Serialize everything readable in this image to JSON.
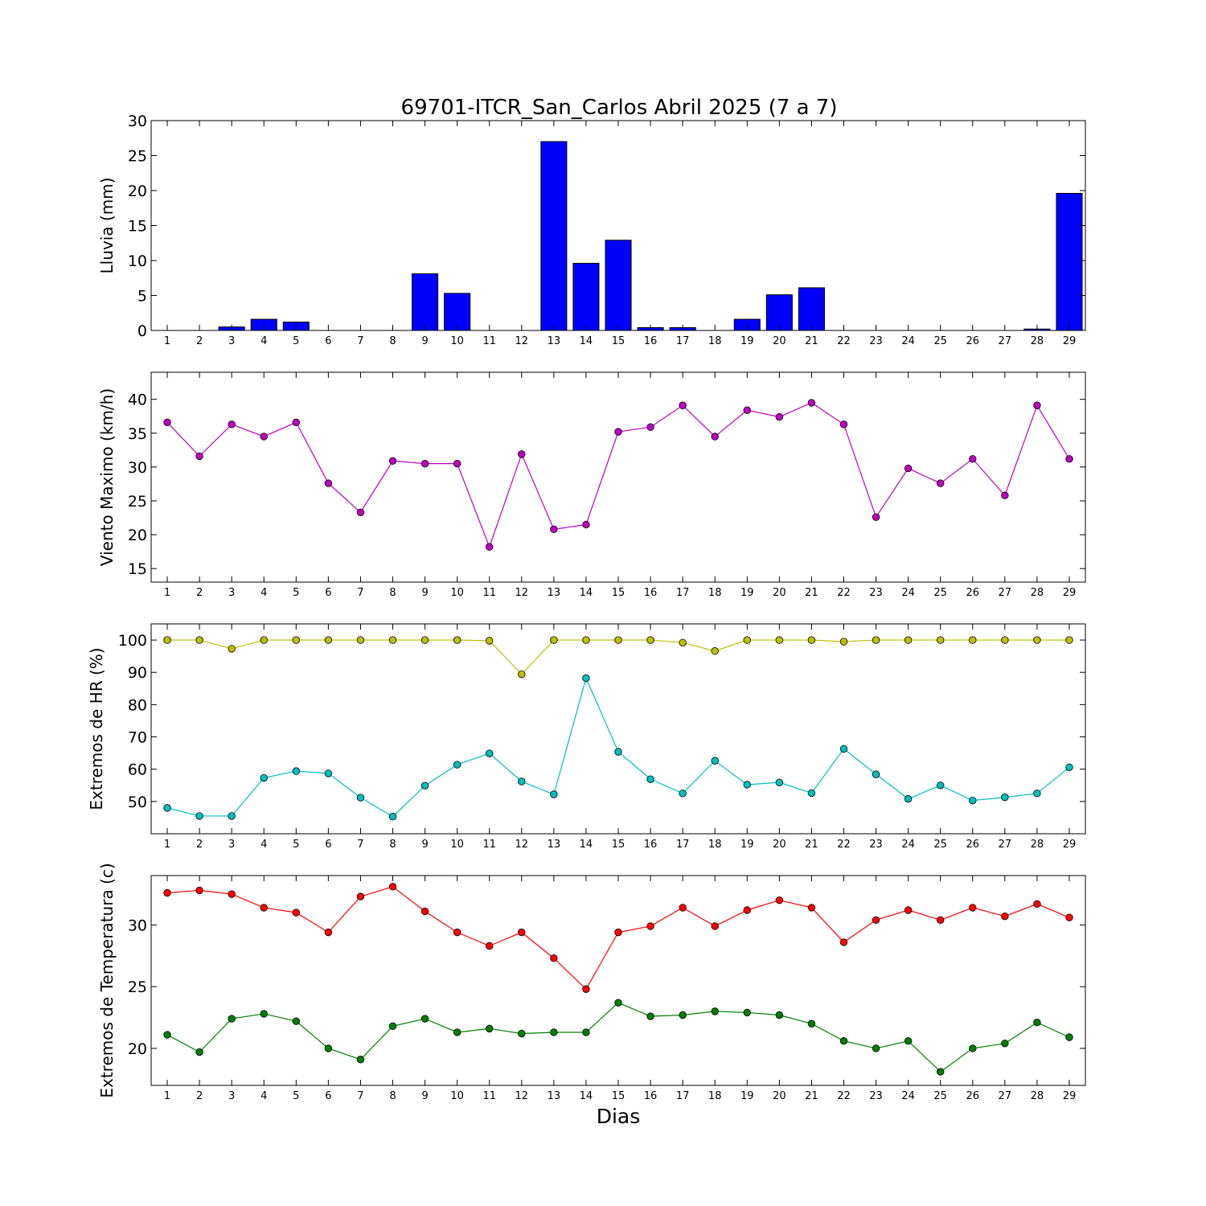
{
  "chart_data": [
    {
      "type": "bar",
      "title": "69701-ITCR_San_Carlos Abril 2025  (7 a 7)",
      "ylabel": "Lluvia (mm)",
      "xlabel": "",
      "ylim": [
        0,
        30
      ],
      "yticks": [
        0,
        5,
        10,
        15,
        20,
        25,
        30
      ],
      "xlim": [
        0.5,
        29.5
      ],
      "grid": false,
      "categories": [
        1,
        2,
        3,
        4,
        5,
        6,
        7,
        8,
        9,
        10,
        11,
        12,
        13,
        14,
        15,
        16,
        17,
        18,
        19,
        20,
        21,
        22,
        23,
        24,
        25,
        26,
        27,
        28,
        29
      ],
      "values": [
        0,
        0,
        0.5,
        1.6,
        1.2,
        0,
        0,
        0,
        8.1,
        5.3,
        0,
        0,
        27.0,
        9.6,
        12.9,
        0.4,
        0.4,
        0,
        1.6,
        5.1,
        6.1,
        0,
        0,
        0,
        0,
        0,
        0,
        0.2,
        19.6
      ],
      "colors": {
        "bar": "#0000ff"
      }
    },
    {
      "type": "line",
      "ylabel": "Viento Maximo (km/h)",
      "xlabel": "",
      "ylim": [
        13,
        44
      ],
      "yticks": [
        15,
        20,
        25,
        30,
        35,
        40
      ],
      "xlim": [
        0.5,
        29.5
      ],
      "grid": false,
      "x": [
        1,
        2,
        3,
        4,
        5,
        6,
        7,
        8,
        9,
        10,
        11,
        12,
        13,
        14,
        15,
        16,
        17,
        18,
        19,
        20,
        21,
        22,
        23,
        24,
        25,
        26,
        27,
        28,
        29
      ],
      "series": [
        {
          "values": [
            36.6,
            31.6,
            36.3,
            34.5,
            36.6,
            27.6,
            23.3,
            30.9,
            30.5,
            30.5,
            18.2,
            31.9,
            20.8,
            21.5,
            35.2,
            35.9,
            39.1,
            34.5,
            38.4,
            37.4,
            39.5,
            36.3,
            22.6,
            29.8,
            27.6,
            31.2,
            25.8,
            39.1,
            31.2
          ],
          "color": "#bf00bf"
        }
      ]
    },
    {
      "type": "line",
      "ylabel": "Extremos de HR (%)",
      "xlabel": "",
      "ylim": [
        40,
        105
      ],
      "yticks": [
        50,
        60,
        70,
        80,
        90,
        100
      ],
      "xlim": [
        0.5,
        29.5
      ],
      "grid": false,
      "x": [
        1,
        2,
        3,
        4,
        5,
        6,
        7,
        8,
        9,
        10,
        11,
        12,
        13,
        14,
        15,
        16,
        17,
        18,
        19,
        20,
        21,
        22,
        23,
        24,
        25,
        26,
        27,
        28,
        29
      ],
      "series": [
        {
          "values": [
            100,
            100,
            97.3,
            100,
            100,
            100,
            100,
            100,
            100,
            100,
            99.8,
            89.4,
            100,
            100,
            100,
            100,
            99.2,
            96.6,
            100,
            100,
            100,
            99.5,
            100,
            100,
            100,
            100,
            100,
            100,
            100
          ],
          "color": "#bfbf00"
        },
        {
          "values": [
            48,
            45.5,
            45.5,
            57.3,
            59.4,
            58.7,
            51.2,
            45.3,
            54.9,
            61.4,
            64.9,
            56.2,
            52.2,
            88.2,
            65.4,
            56.9,
            52.5,
            62.6,
            55.2,
            55.9,
            52.6,
            66.3,
            58.4,
            50.8,
            55,
            50.3,
            51.3,
            52.5,
            60.6
          ],
          "color": "#00bfbf"
        }
      ]
    },
    {
      "type": "line",
      "ylabel": "Extremos de Temperatura (c)",
      "xlabel": "Dias",
      "ylim": [
        17,
        34
      ],
      "yticks": [
        20,
        25,
        30
      ],
      "xlim": [
        0.5,
        29.5
      ],
      "grid": false,
      "x": [
        1,
        2,
        3,
        4,
        5,
        6,
        7,
        8,
        9,
        10,
        11,
        12,
        13,
        14,
        15,
        16,
        17,
        18,
        19,
        20,
        21,
        22,
        23,
        24,
        25,
        26,
        27,
        28,
        29
      ],
      "series": [
        {
          "values": [
            32.6,
            32.8,
            32.5,
            31.4,
            31.0,
            29.4,
            32.3,
            33.1,
            31.1,
            29.4,
            28.3,
            29.4,
            27.3,
            24.8,
            29.4,
            29.9,
            31.4,
            29.9,
            31.2,
            32.0,
            31.4,
            28.6,
            30.4,
            31.2,
            30.4,
            31.4,
            30.7,
            31.7,
            30.6
          ],
          "color": "#ff0000"
        },
        {
          "values": [
            21.1,
            19.7,
            22.4,
            22.8,
            22.2,
            20.0,
            19.1,
            21.8,
            22.4,
            21.3,
            21.6,
            21.2,
            21.3,
            21.3,
            23.7,
            22.6,
            22.7,
            23.0,
            22.9,
            22.7,
            22.0,
            20.6,
            20.0,
            20.6,
            18.1,
            20.0,
            20.4,
            22.1,
            20.9
          ],
          "color": "#007f00"
        }
      ]
    }
  ]
}
